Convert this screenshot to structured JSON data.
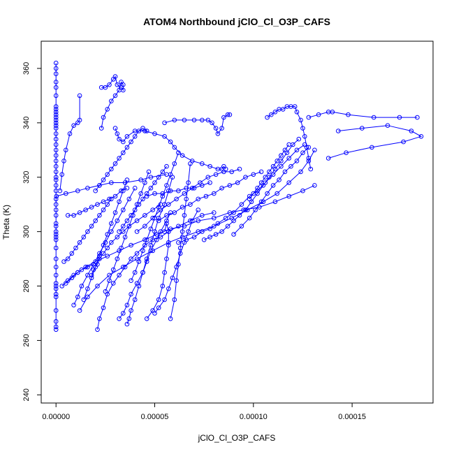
{
  "chart_data": {
    "type": "scatter",
    "title": "ATOM4 Northbound jClO_Cl_O3P_CAFS",
    "xlabel": "jClO_Cl_O3P_CAFS",
    "ylabel": "Theta (K)",
    "xlim": [
      -7.5e-06,
      0.000191
    ],
    "ylim": [
      237,
      370
    ],
    "x_ticks": [
      0.0,
      5e-05,
      0.0001,
      0.00015
    ],
    "x_tick_labels": [
      "0.00000",
      "0.00005",
      "0.00010",
      "0.00015"
    ],
    "y_ticks": [
      240,
      260,
      280,
      300,
      320,
      340,
      360
    ],
    "y_tick_labels": [
      "240",
      "260",
      "280",
      "300",
      "320",
      "340",
      "360"
    ],
    "series_color": "#0000ff",
    "marker": "open-circle",
    "connected": true,
    "series": [
      {
        "x": [
          0,
          0,
          0,
          0,
          0,
          0,
          0,
          0,
          0,
          0,
          0,
          0,
          0,
          0,
          0,
          0,
          0,
          0,
          0,
          0,
          0,
          0,
          0,
          0,
          0,
          0,
          0,
          0,
          0,
          0,
          0,
          0,
          0,
          0,
          0,
          0,
          0,
          0,
          0,
          0,
          0,
          0,
          0,
          0,
          0,
          0,
          0,
          0,
          0,
          0
        ],
        "y": [
          264,
          265,
          267,
          271,
          276,
          277,
          279,
          280,
          281,
          284,
          287,
          290,
          294,
          297,
          298,
          299,
          300,
          302,
          303,
          306,
          308,
          310,
          312,
          315,
          317,
          319,
          320,
          322,
          324,
          326,
          328,
          330,
          332,
          334,
          336,
          338,
          339,
          340,
          341,
          342,
          343,
          344,
          345,
          346,
          350,
          353,
          355,
          358,
          360,
          362
        ]
      },
      {
        "x": [
          2e-07,
          5e-06,
          1.1e-05,
          1.6e-05,
          2.2e-05,
          2.8e-05,
          3.5e-05,
          4.3e-05,
          4.8e-05,
          5.6e-05
        ],
        "y": [
          313,
          314,
          315,
          316,
          317,
          318,
          318,
          319,
          320,
          321
        ]
      },
      {
        "x": [
          1.2e-05,
          1.2e-05,
          1.1e-05,
          9e-06,
          7e-06,
          5e-06,
          4e-06,
          3e-06,
          2e-06
        ],
        "y": [
          350,
          341,
          340,
          339,
          336,
          330,
          326,
          321,
          315
        ]
      },
      {
        "x": [
          1.2e-05,
          1.6e-05,
          2.1e-05,
          2.7e-05,
          3.4e-05,
          4.1e-05,
          4.9e-05,
          5.7e-05,
          6.4e-05,
          7.2e-05,
          8e-05,
          8.9e-05,
          9.7e-05,
          0.000105,
          0.000112,
          0.000118,
          0.000124,
          0.000128,
          0.000131
        ],
        "y": [
          271,
          276,
          280,
          284,
          287,
          290,
          293,
          296,
          298,
          300,
          302,
          305,
          308,
          311,
          314,
          318,
          322,
          326,
          330
        ]
      },
      {
        "x": [
          2.3e-05,
          2.5e-05,
          2.7e-05,
          2.9e-05,
          3e-05,
          3.1e-05,
          3.3e-05,
          3.4e-05,
          3.4e-05,
          3.3e-05,
          3.2e-05,
          3e-05,
          2.8e-05,
          2.6e-05,
          2.4e-05,
          2.3e-05
        ],
        "y": [
          353,
          353,
          354,
          356,
          357,
          354,
          353,
          352,
          354,
          355,
          352,
          350,
          348,
          345,
          342,
          338
        ]
      },
      {
        "x": [
          3e-05,
          3.1e-05,
          3.2e-05,
          3.4e-05,
          3.6e-05,
          4e-05,
          4.5e-05,
          5e-05,
          5.5e-05,
          5.8e-05,
          6e-05,
          6.4e-05,
          6.9e-05,
          7.4e-05,
          7.8e-05,
          8.2e-05,
          8.4e-05,
          8.5e-05,
          8.6e-05
        ],
        "y": [
          338,
          336,
          334,
          333,
          335,
          337,
          337,
          336,
          335,
          333,
          331,
          328,
          326,
          325,
          324,
          323,
          323,
          324,
          323
        ]
      },
      {
        "x": [
          5.5e-05,
          6e-05,
          6.5e-05,
          7e-05,
          7.4e-05,
          7.7e-05,
          7.9e-05,
          8.1e-05,
          8.2e-05,
          8.4e-05,
          8.5e-05,
          8.7e-05,
          8.8e-05
        ],
        "y": [
          340,
          341,
          341,
          341,
          341,
          341,
          340,
          338,
          336,
          338,
          342,
          343,
          343
        ]
      },
      {
        "x": [
          0.000107,
          0.000109,
          0.000111,
          0.000113,
          0.000115,
          0.000117,
          0.000119,
          0.000121,
          0.000122,
          0.000124,
          0.000125,
          0.000126,
          0.000127,
          0.000128,
          0.000129
        ],
        "y": [
          342,
          343,
          344,
          345,
          345,
          346,
          346,
          346,
          344,
          341,
          338,
          335,
          331,
          327,
          323
        ]
      },
      {
        "x": [
          0.000128,
          0.000133,
          0.000138,
          0.00014,
          0.000148,
          0.000161,
          0.000174,
          0.000183
        ],
        "y": [
          342,
          343,
          344,
          344,
          343,
          342,
          342,
          342
        ]
      },
      {
        "x": [
          0.000143,
          0.000155,
          0.000168,
          0.00018,
          0.000185,
          0.000176,
          0.00016,
          0.000147,
          0.000138
        ],
        "y": [
          337,
          338,
          339,
          337,
          335,
          333,
          331,
          329,
          327
        ]
      },
      {
        "x": [
          5e-06,
          8e-06,
          1.1e-05,
          1.5e-05,
          2e-05,
          2.6e-05,
          3.2e-05,
          3.8e-05,
          4.5e-05,
          5.1e-05,
          5.8e-05,
          6.5e-05,
          7.2e-05,
          8e-05,
          8.8e-05,
          9.5e-05,
          0.000103,
          0.000111,
          0.000118,
          0.000125,
          0.000131
        ],
        "y": [
          281,
          283,
          285,
          287,
          289,
          291,
          293,
          295,
          297,
          299,
          301,
          302,
          304,
          305,
          307,
          308,
          309,
          311,
          313,
          315,
          317
        ]
      },
      {
        "x": [
          2.1e-05,
          2.2e-05,
          2.4e-05,
          2.6e-05,
          2.9e-05,
          3.2e-05,
          3.5e-05,
          3.8e-05,
          4.1e-05,
          4.5e-05,
          4.9e-05,
          5.3e-05,
          5.7e-05,
          6.2e-05,
          6.8e-05,
          7.4e-05,
          8e-05
        ],
        "y": [
          264,
          268,
          272,
          277,
          281,
          284,
          287,
          290,
          292,
          295,
          297,
          298,
          300,
          302,
          304,
          306,
          307
        ]
      },
      {
        "x": [
          1.8e-05,
          1.9e-05,
          2.1e-05,
          2.2e-05,
          2.4e-05,
          2.6e-05,
          2.8e-05,
          3.1e-05,
          3.4e-05,
          3.7e-05,
          4.1e-05,
          4.5e-05,
          4.9e-05,
          5.3e-05
        ],
        "y": [
          284,
          286,
          288,
          290,
          292,
          294,
          296,
          298,
          300,
          302,
          304,
          306,
          308,
          310
        ]
      },
      {
        "x": [
          3.2e-05,
          3.4e-05,
          3.6e-05,
          3.8e-05,
          4.1e-05,
          4.4e-05,
          4.6e-05,
          4.8e-05,
          5.1e-05,
          5.3e-05,
          5.6e-05,
          5.8e-05
        ],
        "y": [
          268,
          270,
          273,
          277,
          281,
          285,
          289,
          293,
          297,
          300,
          304,
          307
        ]
      },
      {
        "x": [
          3.6e-05,
          3.7e-05,
          3.8e-05,
          4e-05,
          4.2e-05,
          4.4e-05,
          4.6e-05,
          4.8e-05,
          5e-05,
          5.2e-05,
          5.5e-05,
          5.7e-05,
          5.9e-05
        ],
        "y": [
          266,
          268,
          271,
          275,
          280,
          285,
          290,
          295,
          300,
          305,
          310,
          315,
          320
        ]
      },
      {
        "x": [
          4.6e-05,
          4.9e-05,
          5.2e-05,
          5.4e-05,
          5.5e-05,
          5.6e-05,
          5.7e-05,
          5.7e-05,
          5.6e-05,
          5.5e-05
        ],
        "y": [
          268,
          271,
          275,
          280,
          285,
          290,
          295,
          300,
          303,
          300
        ]
      },
      {
        "x": [
          5e-05,
          5.2e-05,
          5.5e-05,
          5.7e-05,
          5.9e-05,
          6.1e-05,
          6.3e-05,
          6.5e-05,
          6.7e-05,
          6.9e-05,
          7.2e-05
        ],
        "y": [
          270,
          272,
          275,
          279,
          283,
          287,
          292,
          296,
          300,
          304,
          308
        ]
      },
      {
        "x": [
          5.8e-05,
          6e-05,
          6.1e-05,
          6.2e-05,
          6.3e-05,
          6.4e-05,
          6.5e-05,
          6.6e-05,
          6.7e-05,
          6.8e-05
        ],
        "y": [
          268,
          275,
          282,
          288,
          294,
          300,
          306,
          312,
          318,
          325
        ]
      },
      {
        "x": [
          4e-06,
          6e-06,
          8e-06,
          1e-05,
          1.2e-05,
          1.4e-05,
          1.6e-05,
          1.8e-05,
          2e-05,
          2.2e-05,
          2.4e-05,
          2.6e-05,
          2.8e-05
        ],
        "y": [
          289,
          290,
          292,
          294,
          296,
          298,
          300,
          302,
          304,
          306,
          308,
          310,
          312
        ]
      },
      {
        "x": [
          9e-06,
          1.1e-05,
          1.3e-05,
          1.6e-05,
          1.9e-05,
          2.2e-05,
          2.5e-05,
          2.8e-05,
          3.1e-05,
          3.4e-05,
          3.7e-05,
          4e-05
        ],
        "y": [
          273,
          276,
          280,
          284,
          288,
          292,
          296,
          300,
          304,
          308,
          312,
          316
        ]
      },
      {
        "x": [
          1.4e-05,
          1.6e-05,
          1.8e-05,
          2e-05,
          2.2e-05,
          2.4e-05,
          2.6e-05,
          2.8e-05,
          3e-05,
          3.2e-05,
          3.4e-05,
          3.6e-05
        ],
        "y": [
          275,
          279,
          283,
          287,
          291,
          295,
          299,
          303,
          307,
          311,
          315,
          319
        ]
      },
      {
        "x": [
          2.5e-05,
          2.7e-05,
          2.9e-05,
          3.1e-05,
          3.3e-05,
          3.5e-05,
          3.7e-05,
          3.9e-05,
          4.1e-05,
          4.3e-05,
          4.5e-05,
          4.7e-05
        ],
        "y": [
          278,
          282,
          286,
          290,
          294,
          298,
          302,
          306,
          310,
          314,
          318,
          322
        ]
      },
      {
        "x": [
          3.8e-05,
          4e-05,
          4.2e-05,
          4.4e-05,
          4.6e-05,
          4.8e-05,
          5e-05,
          5.2e-05,
          5.4e-05,
          5.6e-05,
          5.8e-05,
          6e-05,
          6.2e-05
        ],
        "y": [
          282,
          285,
          289,
          293,
          297,
          301,
          305,
          309,
          313,
          317,
          321,
          325,
          329
        ]
      },
      {
        "x": [
          6.2e-05,
          6.6e-05,
          7e-05,
          7.4e-05,
          7.8e-05,
          8.2e-05,
          8.6e-05,
          9e-05,
          9.4e-05,
          9.8e-05,
          0.000102,
          0.000106,
          0.00011,
          0.000114,
          0.000118,
          0.000122,
          0.000126
        ],
        "y": [
          296,
          297,
          298,
          300,
          301,
          303,
          305,
          307,
          310,
          313,
          315,
          318,
          321,
          324,
          327,
          330,
          332
        ]
      },
      {
        "x": [
          7.5e-05,
          7.8e-05,
          8.1e-05,
          8.4e-05,
          8.7e-05,
          9e-05,
          9.3e-05,
          9.6e-05,
          9.9e-05,
          0.000102,
          0.000105,
          0.000108,
          0.000111,
          0.000114,
          0.000117,
          0.00012,
          0.000123
        ],
        "y": [
          297,
          298,
          299,
          300,
          302,
          304,
          306,
          308,
          311,
          314,
          317,
          320,
          323,
          326,
          329,
          332,
          334
        ]
      },
      {
        "x": [
          9e-05,
          9.4e-05,
          9.8e-05,
          0.000101,
          0.000104,
          0.000107,
          0.00011,
          0.000113,
          0.000116,
          0.000119,
          0.000122,
          0.000125,
          0.000128
        ],
        "y": [
          299,
          302,
          305,
          308,
          311,
          314,
          317,
          319,
          322,
          324,
          326,
          329,
          331
        ]
      },
      {
        "x": [
          3.2e-05,
          3.4e-05,
          3.6e-05,
          3.8e-05,
          4e-05,
          4.2e-05,
          4.4e-05,
          4.6e-05,
          4.8e-05,
          5e-05,
          5.2e-05,
          5.4e-05,
          5.6e-05
        ],
        "y": [
          300,
          302,
          304,
          306,
          308,
          310,
          312,
          314,
          316,
          318,
          320,
          322,
          324
        ]
      },
      {
        "x": [
          2e-05,
          2.2e-05,
          2.4e-05,
          2.6e-05,
          2.8e-05,
          3e-05,
          3.2e-05,
          3.4e-05,
          3.6e-05,
          3.8e-05,
          4e-05,
          4.2e-05,
          4.4e-05,
          4.6e-05
        ],
        "y": [
          315,
          317,
          319,
          321,
          323,
          325,
          327,
          329,
          331,
          333,
          335,
          337,
          338,
          337
        ]
      },
      {
        "x": [
          4.1e-05,
          4.5e-05,
          4.9e-05,
          5.3e-05,
          5.7e-05,
          6.1e-05,
          6.5e-05,
          6.9e-05,
          7.3e-05,
          7.7e-05,
          8.1e-05,
          8.5e-05,
          8.9e-05,
          9.3e-05
        ],
        "y": [
          300,
          302,
          305,
          308,
          310,
          312,
          314,
          316,
          318,
          320,
          321,
          322,
          322,
          323
        ]
      },
      {
        "x": [
          4.6e-05,
          5e-05,
          5.4e-05,
          5.8e-05,
          6.2e-05,
          6.6e-05,
          7e-05,
          7.4e-05,
          7.8e-05
        ],
        "y": [
          313,
          314,
          314,
          315,
          315,
          316,
          316,
          317,
          318
        ]
      },
      {
        "x": [
          6e-06,
          9e-06,
          1.2e-05,
          1.5e-05,
          1.8e-05,
          2.1e-05,
          2.4e-05,
          2.7e-05,
          3e-05,
          3.3e-05,
          3.6e-05
        ],
        "y": [
          306,
          306,
          307,
          308,
          309,
          310,
          311,
          312,
          313,
          315,
          316
        ]
      },
      {
        "x": [
          3e-06,
          6e-06,
          9e-06,
          1.1e-05,
          1.3e-05,
          1.6e-05,
          1.9e-05
        ],
        "y": [
          280,
          282,
          284,
          285,
          286,
          287,
          288
        ]
      },
      {
        "x": [
          5.2e-05,
          5.6e-05,
          6e-05,
          6.4e-05,
          6.8e-05,
          7.2e-05,
          7.6e-05,
          8e-05,
          8.4e-05,
          8.8e-05,
          9.2e-05,
          9.6e-05,
          0.0001,
          0.000104
        ],
        "y": [
          304,
          306,
          307,
          309,
          310,
          312,
          313,
          314,
          316,
          317,
          318,
          320,
          321,
          322
        ]
      },
      {
        "x": [
          9.8e-05,
          0.0001,
          0.000102,
          0.000104,
          0.000106,
          0.000108,
          0.00011,
          0.000112,
          0.000114,
          0.000116,
          0.000118
        ],
        "y": [
          312,
          314,
          316,
          318,
          320,
          322,
          324,
          326,
          328,
          330,
          332
        ]
      }
    ]
  }
}
